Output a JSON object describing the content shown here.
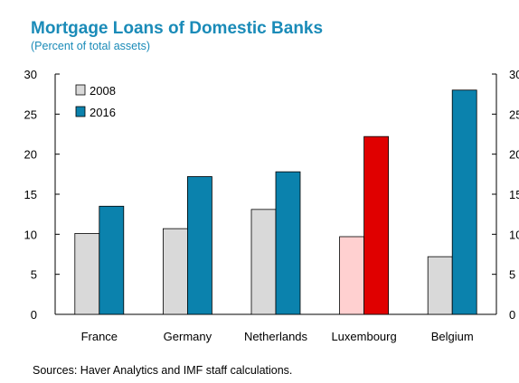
{
  "header": {
    "title": "Mortgage Loans of Domestic Banks",
    "subtitle": "(Percent of total assets)"
  },
  "footer": {
    "sources": "Sources: Haver Analytics and IMF staff calculations."
  },
  "colors": {
    "title": "#1a8bb8",
    "series_2008": "#d9d9d9",
    "series_2016": "#0b82ad",
    "highlight_2008": "#ffd0d0",
    "highlight_2016": "#e00000",
    "axis": "#000000"
  },
  "chart_data": {
    "type": "bar",
    "title": "Mortgage Loans of Domestic Banks",
    "subtitle": "(Percent of total assets)",
    "categories": [
      "France",
      "Germany",
      "Netherlands",
      "Luxembourg",
      "Belgium"
    ],
    "series": [
      {
        "name": "2008",
        "values": [
          10.1,
          10.7,
          13.1,
          9.7,
          7.2
        ]
      },
      {
        "name": "2016",
        "values": [
          13.5,
          17.2,
          17.8,
          22.2,
          28.0
        ]
      }
    ],
    "highlight_category": "Luxembourg",
    "ylim": [
      0,
      30
    ],
    "yticks": [
      0,
      5,
      10,
      15,
      20,
      25,
      30
    ],
    "y_axis_left": true,
    "y_axis_right": true,
    "grid": false,
    "legend_position": "top-left",
    "xlabel": "",
    "ylabel": ""
  }
}
